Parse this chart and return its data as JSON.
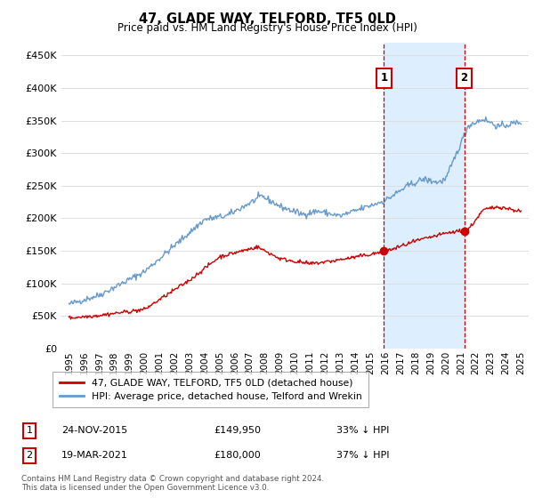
{
  "title": "47, GLADE WAY, TELFORD, TF5 0LD",
  "subtitle": "Price paid vs. HM Land Registry's House Price Index (HPI)",
  "ylim": [
    0,
    470000
  ],
  "yticks": [
    0,
    50000,
    100000,
    150000,
    200000,
    250000,
    300000,
    350000,
    400000,
    450000
  ],
  "ytick_labels": [
    "£0",
    "£50K",
    "£100K",
    "£150K",
    "£200K",
    "£250K",
    "£300K",
    "£350K",
    "£400K",
    "£450K"
  ],
  "xlim_start": 1994.5,
  "xlim_end": 2025.5,
  "xtick_years": [
    1995,
    1996,
    1997,
    1998,
    1999,
    2000,
    2001,
    2002,
    2003,
    2004,
    2005,
    2006,
    2007,
    2008,
    2009,
    2010,
    2011,
    2012,
    2013,
    2014,
    2015,
    2016,
    2017,
    2018,
    2019,
    2020,
    2021,
    2022,
    2023,
    2024,
    2025
  ],
  "line_red_color": "#cc0000",
  "line_blue_color": "#6699cc",
  "shade_color": "#ddeeff",
  "vline_color": "#cc0000",
  "marker1_x": 2015.9,
  "marker1_y": 149950,
  "marker2_x": 2021.22,
  "marker2_y": 180000,
  "legend_entries": [
    {
      "label": "47, GLADE WAY, TELFORD, TF5 0LD (detached house)",
      "color": "#cc0000"
    },
    {
      "label": "HPI: Average price, detached house, Telford and Wrekin",
      "color": "#6699cc"
    }
  ],
  "table_rows": [
    {
      "num": "1",
      "date": "24-NOV-2015",
      "price": "£149,950",
      "hpi": "33% ↓ HPI"
    },
    {
      "num": "2",
      "date": "19-MAR-2021",
      "price": "£180,000",
      "hpi": "37% ↓ HPI"
    }
  ],
  "footer": "Contains HM Land Registry data © Crown copyright and database right 2024.\nThis data is licensed under the Open Government Licence v3.0.",
  "bg_color": "#ffffff",
  "grid_color": "#dddddd"
}
